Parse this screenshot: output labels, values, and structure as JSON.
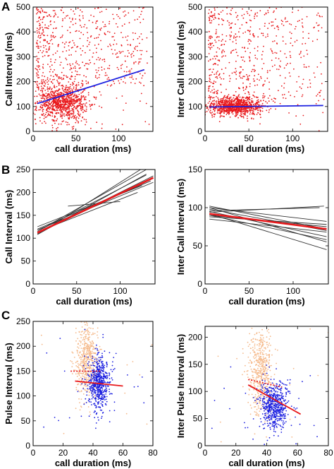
{
  "panel_letters": [
    "A",
    "B",
    "C"
  ],
  "chart_data": [
    {
      "panel": "A",
      "type": "scatter",
      "xlabel": "call duration (ms)",
      "ylabel": "Call Interval (ms)",
      "xlim": [
        0,
        140
      ],
      "ylim": [
        0,
        500
      ],
      "xticks": [
        0,
        50,
        100
      ],
      "yticks": [
        0,
        100,
        200,
        300,
        400,
        500
      ],
      "grid": false,
      "series": [
        {
          "kind": "points",
          "color": "#e8191c",
          "count_approx": 1500,
          "x_core": [
            10,
            60
          ],
          "y_core": [
            60,
            180
          ],
          "y_range": [
            30,
            500
          ]
        },
        {
          "kind": "fit",
          "color": "#1b1fe0",
          "x": [
            5,
            130
          ],
          "y": [
            112,
            248
          ]
        }
      ]
    },
    {
      "panel": "A",
      "type": "scatter",
      "xlabel": "call duration (ms)",
      "ylabel": "Inter Call Interval (ms)",
      "xlim": [
        0,
        140
      ],
      "ylim": [
        0,
        500
      ],
      "xticks": [
        0,
        50,
        100
      ],
      "yticks": [
        0,
        100,
        200,
        300,
        400,
        500
      ],
      "grid": false,
      "series": [
        {
          "kind": "points",
          "color": "#e8191c",
          "count_approx": 1500,
          "x_core": [
            10,
            60
          ],
          "y_core": [
            70,
            130
          ],
          "y_range": [
            40,
            500
          ]
        },
        {
          "kind": "fit",
          "color": "#1b1fe0",
          "x": [
            5,
            135
          ],
          "y": [
            98,
            104
          ]
        }
      ]
    },
    {
      "panel": "B",
      "type": "line",
      "xlabel": "call duration (ms)",
      "ylabel": "Call Interval (ms)",
      "xlim": [
        0,
        140
      ],
      "ylim": [
        0,
        250
      ],
      "xticks": [
        0,
        50,
        100
      ],
      "yticks": [
        0,
        50,
        100,
        150,
        200,
        250
      ],
      "grid": false,
      "series": [
        {
          "kind": "individual_fits",
          "color": "#333333",
          "lines": [
            {
              "x": [
                5,
                125
              ],
              "y": [
                108,
                252
              ]
            },
            {
              "x": [
                5,
                130
              ],
              "y": [
                115,
                250
              ]
            },
            {
              "x": [
                8,
                130
              ],
              "y": [
                118,
                238
              ]
            },
            {
              "x": [
                5,
                135
              ],
              "y": [
                120,
                225
              ]
            },
            {
              "x": [
                5,
                138
              ],
              "y": [
                112,
                232
              ]
            },
            {
              "x": [
                5,
                138
              ],
              "y": [
                118,
                222
              ]
            },
            {
              "x": [
                10,
                135
              ],
              "y": [
                115,
                228
              ]
            },
            {
              "x": [
                5,
                138
              ],
              "y": [
                110,
                236
              ]
            },
            {
              "x": [
                5,
                125
              ],
              "y": [
                125,
                215
              ]
            },
            {
              "x": [
                40,
                100
              ],
              "y": [
                170,
                180
              ]
            },
            {
              "x": [
                20,
                120
              ],
              "y": [
                125,
                200
              ]
            },
            {
              "x": [
                5,
                130
              ],
              "y": [
                108,
                240
              ]
            }
          ]
        },
        {
          "kind": "mean_fit",
          "color": "#e8191c",
          "x": [
            5,
            138
          ],
          "y": [
            112,
            232
          ]
        }
      ]
    },
    {
      "panel": "B",
      "type": "line",
      "xlabel": "call duration (ms)",
      "ylabel": "Inter Call Interval (ms)",
      "xlim": [
        0,
        140
      ],
      "ylim": [
        0,
        150
      ],
      "xticks": [
        0,
        50,
        100
      ],
      "yticks": [
        0,
        50,
        100,
        150
      ],
      "grid": false,
      "series": [
        {
          "kind": "individual_fits",
          "color": "#333333",
          "lines": [
            {
              "x": [
                5,
                138
              ],
              "y": [
                100,
                55
              ]
            },
            {
              "x": [
                5,
                138
              ],
              "y": [
                95,
                62
              ]
            },
            {
              "x": [
                5,
                138
              ],
              "y": [
                92,
                45
              ]
            },
            {
              "x": [
                5,
                138
              ],
              "y": [
                98,
                70
              ]
            },
            {
              "x": [
                5,
                138
              ],
              "y": [
                90,
                75
              ]
            },
            {
              "x": [
                5,
                138
              ],
              "y": [
                88,
                78
              ]
            },
            {
              "x": [
                5,
                138
              ],
              "y": [
                102,
                72
              ]
            },
            {
              "x": [
                5,
                130
              ],
              "y": [
                96,
                100
              ]
            },
            {
              "x": [
                5,
                135
              ],
              "y": [
                94,
                102
              ]
            },
            {
              "x": [
                5,
                138
              ],
              "y": [
                85,
                68
              ]
            },
            {
              "x": [
                5,
                138
              ],
              "y": [
                100,
                82
              ]
            },
            {
              "x": [
                5,
                138
              ],
              "y": [
                90,
                58
              ]
            }
          ]
        },
        {
          "kind": "mean_fit",
          "color": "#e8191c",
          "x": [
            5,
            138
          ],
          "y": [
            92,
            72
          ]
        }
      ]
    },
    {
      "panel": "C",
      "type": "scatter",
      "xlabel": "call duration (ms)",
      "ylabel": "Pulse Interval (ms)",
      "xlim": [
        0,
        80
      ],
      "ylim": [
        0,
        250
      ],
      "xticks": [
        0,
        20,
        40,
        60,
        80
      ],
      "yticks": [
        0,
        50,
        100,
        150,
        200,
        250
      ],
      "grid": false,
      "series": [
        {
          "kind": "points",
          "color": "#f5b98a",
          "count_approx": 500,
          "x_core": [
            30,
            42
          ],
          "y_core": [
            110,
            230
          ]
        },
        {
          "kind": "points",
          "color": "#1b1fe0",
          "count_approx": 600,
          "x_core": [
            38,
            50
          ],
          "y_core": [
            80,
            170
          ]
        },
        {
          "kind": "dotted_fit",
          "color": "#e8191c",
          "x": [
            25,
            45
          ],
          "y": [
            150,
            150
          ]
        },
        {
          "kind": "fit",
          "color": "#e8191c",
          "x": [
            28,
            60
          ],
          "y": [
            130,
            120
          ]
        }
      ]
    },
    {
      "panel": "C",
      "type": "scatter",
      "xlabel": "call duration (ms)",
      "ylabel": "Inter Pulse Interval (ms)",
      "xlim": [
        0,
        80
      ],
      "ylim": [
        0,
        220
      ],
      "xticks": [
        0,
        20,
        40,
        60,
        80
      ],
      "yticks": [
        0,
        50,
        100,
        150,
        200
      ],
      "grid": false,
      "series": [
        {
          "kind": "points",
          "color": "#f5b98a",
          "count_approx": 500,
          "x_core": [
            30,
            42
          ],
          "y_core": [
            70,
            200
          ]
        },
        {
          "kind": "points",
          "color": "#1b1fe0",
          "count_approx": 600,
          "x_core": [
            38,
            52
          ],
          "y_core": [
            40,
            110
          ]
        },
        {
          "kind": "dotted_fit",
          "color": "#e8191c",
          "x": [
            28,
            50
          ],
          "y": [
            122,
            108
          ]
        },
        {
          "kind": "fit",
          "color": "#e8191c",
          "x": [
            28,
            62
          ],
          "y": [
            112,
            58
          ]
        }
      ]
    }
  ]
}
